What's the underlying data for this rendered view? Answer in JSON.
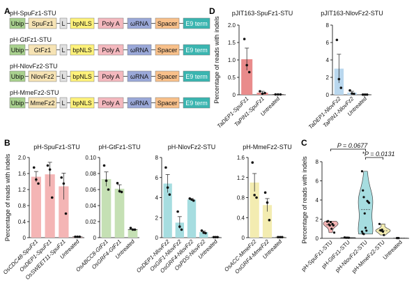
{
  "panels": {
    "A": "A",
    "B": "B",
    "C": "C",
    "D": "D"
  },
  "constructs": [
    {
      "title": "pH-SpuFz1-STU",
      "parts": [
        "Ubip",
        "SpuFz1",
        "L",
        "bpNLS",
        "Poly A",
        "ωRNA",
        "Spacer",
        "E9 term"
      ]
    },
    {
      "title": "pH-GtFz1-STU",
      "parts": [
        "Ubip",
        "GtFz1",
        "L",
        "bpNLS",
        "Poly A",
        "ωRNA",
        "Spacer",
        "E9 term"
      ]
    },
    {
      "title": "pH-NlovFz2-STU",
      "parts": [
        "Ubip",
        "NlovFz2",
        "L",
        "bpNLS",
        "Poly A",
        "ωRNA",
        "Spacer",
        "E9 term"
      ]
    },
    {
      "title": "pH-MmeFz2-STU",
      "parts": [
        "Ubip",
        "MmeFz2",
        "L",
        "bpNLS",
        "Poly A",
        "ωRNA",
        "Spacer",
        "E9 term"
      ]
    }
  ],
  "part_colors": [
    "#a9d18e",
    "#f6e3b4",
    "#e0e0e0",
    "#fff27a",
    "#f4b8be",
    "#9aa8d8",
    "#f8c08a",
    "#3ab5b0"
  ],
  "chart_data": [
    {
      "type": "bar",
      "panel": "D",
      "title": "pJIT163-SpuFz1-STU",
      "ylabel": "Percentage of reads with indels",
      "ylim": [
        0,
        2.0
      ],
      "yticks": [
        0,
        0.5,
        1.0,
        1.5,
        2.0
      ],
      "ytick_labels": [
        "0",
        "0.5",
        "1.0",
        "1.5",
        "2.0"
      ],
      "categories": [
        "TaDEP1-SpuFz1",
        "TaPIN1-SpuFz1",
        "Untreated"
      ],
      "values": [
        1.02,
        0.06,
        0.01
      ],
      "errors": [
        0.32,
        0.04,
        0.0
      ],
      "points": [
        [
          1.6,
          0.85,
          0.65
        ],
        [
          0.1,
          0.03,
          0.05
        ],
        [
          0.01,
          0.01,
          0.01
        ]
      ],
      "color": "#e98b8b"
    },
    {
      "type": "bar",
      "panel": "D",
      "title": "pJIT163-NlovFz2-STU",
      "ylabel": "",
      "ylim": [
        0,
        8
      ],
      "yticks": [
        0,
        2,
        4,
        6,
        8
      ],
      "ytick_labels": [
        "0",
        "2",
        "4",
        "6",
        "8"
      ],
      "categories": [
        "TaDEP1-NlovFz2",
        "TaPIN1-NlovFz2",
        "Untreated"
      ],
      "values": [
        3.0,
        0.25,
        0.02
      ],
      "errors": [
        1.65,
        0.15,
        0.0
      ],
      "points": [
        [
          6.3,
          1.8,
          0.8
        ],
        [
          0.5,
          0.15,
          0.1
        ],
        [
          0.02,
          0.02,
          0.02
        ]
      ],
      "color": "#b9d7ee"
    },
    {
      "type": "bar",
      "panel": "B",
      "title": "pH-SpuFz1-STU",
      "ylabel": "Percentage of reads with indels",
      "ylim": [
        0,
        2.0
      ],
      "yticks": [
        0,
        0.4,
        0.8,
        1.2,
        1.6,
        2.0
      ],
      "ytick_labels": [
        "0",
        "0.4",
        "0.8",
        "1.2",
        "1.6",
        "2.0"
      ],
      "categories": [
        "OsCDC48-SpuFz1",
        "OsDEP1-SpuFz1",
        "OsSWEET11-SpuFz1",
        "Untreated"
      ],
      "values": [
        1.52,
        1.58,
        1.28,
        0.02
      ],
      "errors": [
        0.13,
        0.3,
        0.33,
        0.0
      ],
      "points": [
        [
          1.75,
          1.45,
          1.35
        ],
        [
          1.8,
          1.7,
          1.0
        ],
        [
          1.5,
          1.35,
          0.6
        ],
        [
          0.02,
          0.02,
          0.02
        ]
      ],
      "color": "#f4b5b5"
    },
    {
      "type": "bar",
      "panel": "B",
      "title": "pH-GtFz1-STU",
      "ylabel": "",
      "ylim": [
        0,
        0.1
      ],
      "yticks": [
        0,
        0.02,
        0.04,
        0.06,
        0.08,
        0.1
      ],
      "ytick_labels": [
        "0",
        "0.02",
        "0.04",
        "0.06",
        "0.08",
        "0.10"
      ],
      "categories": [
        "OsABCC8-GtFz1",
        "OsGRF4-GtFz1",
        "Untreated"
      ],
      "values": [
        0.073,
        0.061,
        0.01
      ],
      "errors": [
        0.009,
        0.005,
        0.0
      ],
      "points": [
        [
          0.09,
          0.071,
          0.06
        ],
        [
          0.068,
          0.058,
          0.057
        ],
        [
          0.012,
          0.01,
          0.01
        ]
      ],
      "color": "#c5e0b4"
    },
    {
      "type": "bar",
      "panel": "B",
      "title": "pH-NlovFz2-STU",
      "ylabel": "",
      "ylim": [
        0,
        8
      ],
      "yticks": [
        0,
        2,
        4,
        6,
        8
      ],
      "ytick_labels": [
        "0",
        "2",
        "4",
        "6",
        "8"
      ],
      "categories": [
        "OsDEP1-NlovFz2",
        "OsGIF1-NlovFz2",
        "OsGRF4-NlovFz2",
        "OsPDS-NlovFz2",
        "Untreated"
      ],
      "values": [
        5.4,
        1.5,
        3.8,
        0.55,
        0.05
      ],
      "errors": [
        0.9,
        0.6,
        0.1,
        0.1,
        0.0
      ],
      "points": [
        [
          7.0,
          5.0,
          4.3
        ],
        [
          2.6,
          1.1,
          0.8
        ],
        [
          3.9,
          3.8,
          3.7
        ],
        [
          0.7,
          0.5,
          0.45
        ],
        [
          0.05,
          0.05,
          0.05
        ]
      ],
      "color": "#a6dde0"
    },
    {
      "type": "bar",
      "panel": "B",
      "title": "pH-MmeFz2-STU",
      "ylabel": "",
      "ylim": [
        0,
        1.6
      ],
      "yticks": [
        0,
        0.4,
        0.8,
        1.2,
        1.6
      ],
      "ytick_labels": [
        "0",
        "0.4",
        "0.8",
        "1.2",
        "1.6"
      ],
      "categories": [
        "OsACC-MmeFz2",
        "OsGRF4-MmeFz2",
        "Untreated"
      ],
      "values": [
        1.1,
        0.65,
        0.01
      ],
      "errors": [
        0.18,
        0.13,
        0.0
      ],
      "points": [
        [
          1.5,
          0.85,
          0.8
        ],
        [
          0.9,
          0.7,
          0.35
        ],
        [
          0.01,
          0.01,
          0.01
        ]
      ],
      "color": "#f3ecb1"
    },
    {
      "type": "violin",
      "panel": "C",
      "ylabel": "Percentage of reads with indels",
      "ylim": [
        0,
        8
      ],
      "yticks": [
        0,
        2,
        4,
        6,
        8
      ],
      "ytick_labels": [
        "0",
        "2",
        "4",
        "6",
        "8"
      ],
      "categories": [
        "pH-SpuFz1-STU",
        "pH-GtFz1-STU",
        "pH-NlovFz2-STU",
        "pH-MmeFz2-STU",
        "Untreated"
      ],
      "points": [
        [
          1.75,
          1.8,
          1.45,
          1.35,
          1.7,
          1.0,
          1.5,
          1.35,
          0.6
        ],
        [
          0.09,
          0.07,
          0.06,
          0.07,
          0.06,
          0.06
        ],
        [
          7.0,
          5.0,
          4.3,
          2.6,
          1.1,
          0.8,
          3.9,
          3.8,
          3.7,
          0.7,
          0.5,
          0.45
        ],
        [
          1.5,
          0.85,
          0.8,
          0.9,
          0.7,
          0.35
        ],
        [
          0.03,
          0.03,
          0.03
        ]
      ],
      "medians": [
        1.4,
        0.06,
        3.0,
        0.8,
        0.03
      ],
      "colors": [
        "#f4b5b5",
        "#c5e0b4",
        "#a6dde0",
        "#f3ecb1",
        "#dddddd"
      ],
      "annotations": [
        {
          "text": "P = 0.0677",
          "from": 0,
          "to": 2
        },
        {
          "text": "*P = 0.0131",
          "from": 2,
          "to": 3
        }
      ]
    }
  ]
}
